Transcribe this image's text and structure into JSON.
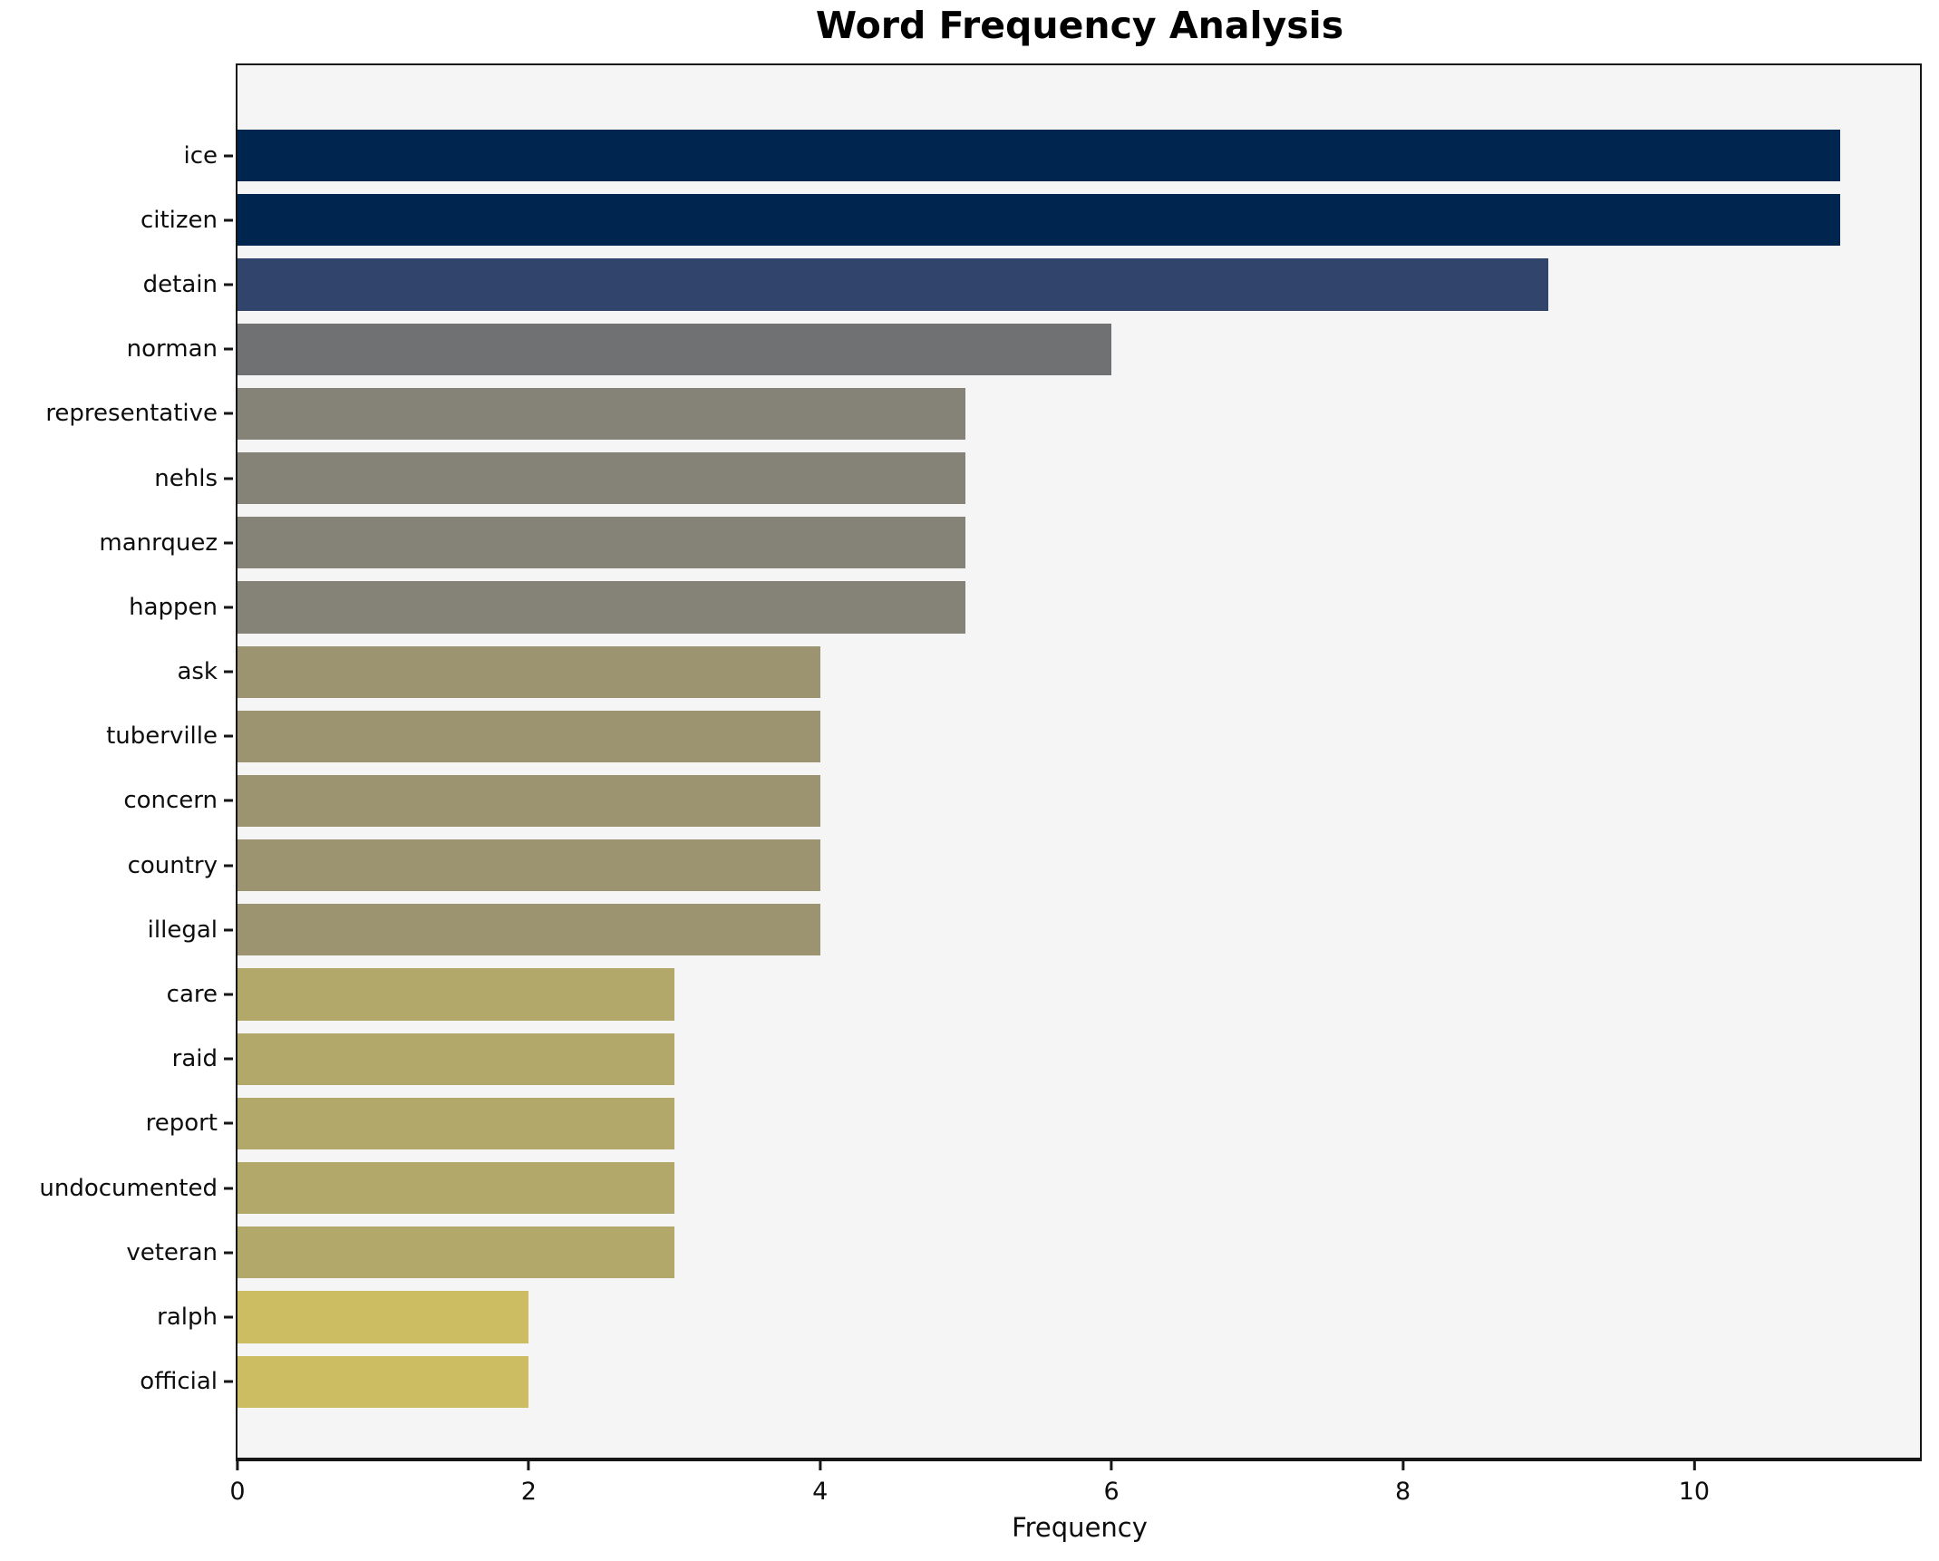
{
  "chart_data": {
    "type": "bar",
    "orientation": "horizontal",
    "title": "Word Frequency Analysis",
    "xlabel": "Frequency",
    "ylabel": "",
    "categories": [
      "ice",
      "citizen",
      "detain",
      "norman",
      "representative",
      "nehls",
      "manrquez",
      "happen",
      "ask",
      "tuberville",
      "concern",
      "country",
      "illegal",
      "care",
      "raid",
      "report",
      "undocumented",
      "veteran",
      "ralph",
      "official"
    ],
    "values": [
      11,
      11,
      9,
      6,
      5,
      5,
      5,
      5,
      4,
      4,
      4,
      4,
      4,
      3,
      3,
      3,
      3,
      3,
      2,
      2
    ],
    "bar_colors": [
      "#00254f",
      "#00254f",
      "#31446b",
      "#707173",
      "#858377",
      "#858377",
      "#858377",
      "#858377",
      "#9c9471",
      "#9c9471",
      "#9c9471",
      "#9c9471",
      "#9c9471",
      "#b2a86a",
      "#b2a86a",
      "#b2a86a",
      "#b2a86a",
      "#b2a86a",
      "#ccbc62",
      "#ccbc62"
    ],
    "xlim": [
      0,
      11.55
    ],
    "xticks": [
      0,
      2,
      4,
      6,
      8,
      10
    ],
    "grid": false,
    "legend_position": "none",
    "plot_background": "#f5f5f6",
    "spine_color": "#161616"
  }
}
